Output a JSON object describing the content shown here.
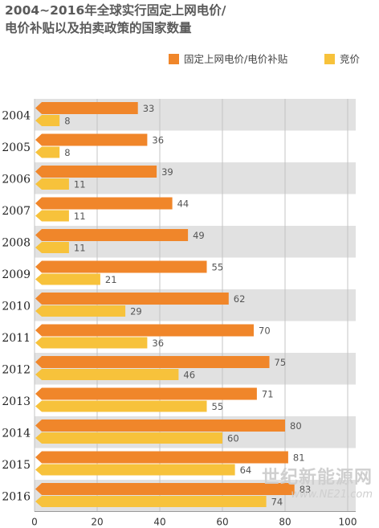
{
  "chart_data": {
    "type": "bar",
    "orientation": "horizontal",
    "title_line1": "2004~2016年全球实行固定上网电价/",
    "title_line2": "电价补贴以及拍卖政策的国家数量",
    "categories": [
      "2004",
      "2005",
      "2006",
      "2007",
      "2008",
      "2009",
      "2010",
      "2011",
      "2012",
      "2013",
      "2014",
      "2015",
      "2016"
    ],
    "series": [
      {
        "name": "固定上网电价/电价补贴",
        "color": "#f0862a",
        "values": [
          33,
          36,
          39,
          44,
          49,
          55,
          62,
          70,
          75,
          71,
          80,
          81,
          83
        ]
      },
      {
        "name": "竞价",
        "color": "#f7c23b",
        "values": [
          8,
          8,
          11,
          11,
          11,
          21,
          29,
          36,
          46,
          55,
          60,
          64,
          74
        ]
      }
    ],
    "x_ticks": [
      0,
      20,
      40,
      60,
      80,
      100
    ],
    "xlim": [
      0,
      100
    ],
    "grid": true,
    "legend_position": "top-right"
  },
  "watermark": {
    "line1": "世纪新能源网",
    "line2": "www.NE21.com"
  }
}
